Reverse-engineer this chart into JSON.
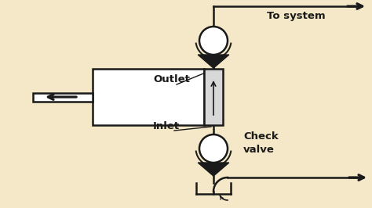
{
  "bg_color": "#f5e8c8",
  "line_color": "#1a1a1a",
  "fill_white": "#ffffff",
  "fill_light": "#d8d8d8",
  "text_color": "#1a1a1a",
  "outlet_label": "Outlet",
  "inlet_label": "Inlet",
  "check_valve_label1": "Check",
  "check_valve_label2": "valve",
  "to_system_label": "To system",
  "lw": 1.8
}
